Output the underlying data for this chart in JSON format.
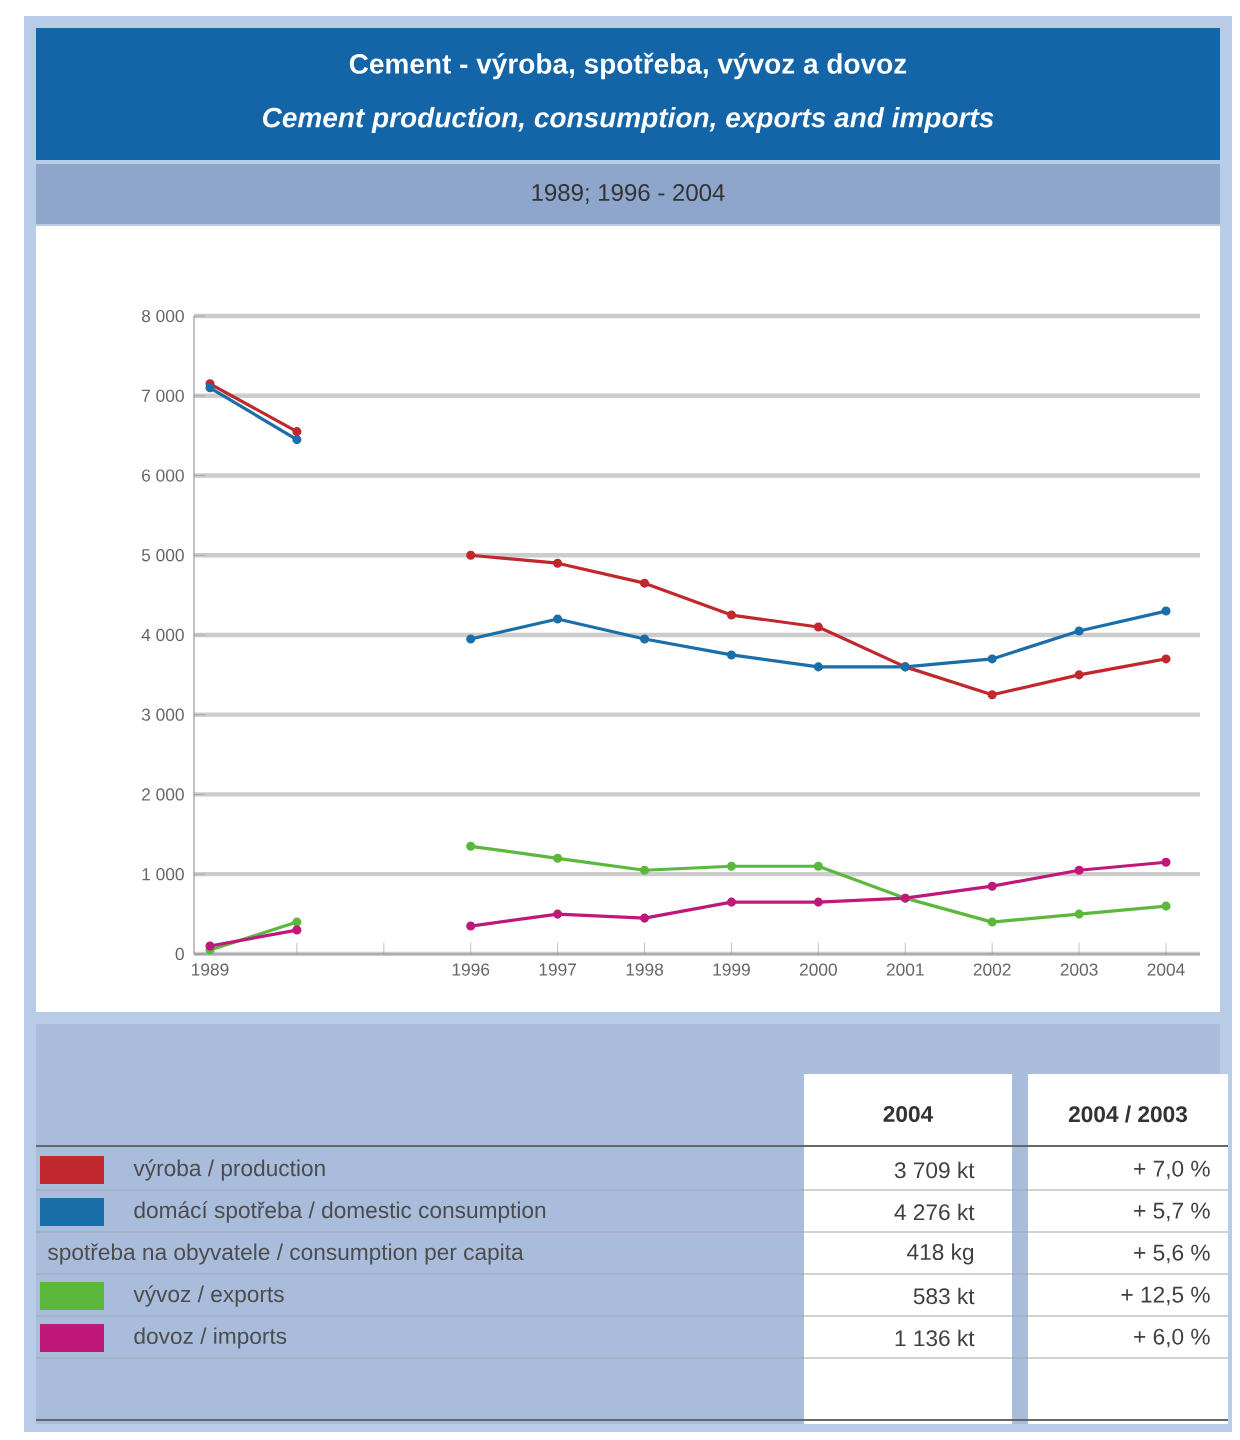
{
  "chart_data": {
    "type": "line",
    "title": "Cement - výroba, spotřeba, vývoz a dovoz",
    "subtitle": "*Cement production, consumption, exports and imports*",
    "categories": [
      "1989",
      null,
      null,
      "1996",
      "1997",
      "1998",
      "1999",
      "2000",
      "2001",
      "2002",
      "2003",
      "2004"
    ],
    "series": [
      {
        "name": "výroba / production",
        "color": "#c0282e",
        "values": [
          7150,
          6550,
          null,
          5000,
          4900,
          4650,
          4250,
          4100,
          3600,
          3250,
          3500,
          3700
        ]
      },
      {
        "name": "domácí spotřeba / domestic consumption",
        "color": "#1a6fa8",
        "values": [
          7100,
          6450,
          null,
          3950,
          4200,
          3950,
          3750,
          3600,
          3600,
          3700,
          4050,
          4300
        ]
      },
      {
        "name": "vývoz / exports",
        "color": "#5cb83c",
        "values": [
          50,
          400,
          null,
          1350,
          1200,
          1050,
          1100,
          1100,
          700,
          400,
          500,
          600
        ]
      },
      {
        "name": "dovoz / imports",
        "color": "#c0187a",
        "values": [
          100,
          300,
          null,
          350,
          500,
          450,
          650,
          650,
          700,
          850,
          1050,
          1150
        ]
      }
    ],
    "ylim": [
      0,
      8000
    ],
    "yticks": [
      0,
      {
        "value": 1000,
        "label": "1 000"
      },
      {
        "value": 2000,
        "label": "2 000"
      },
      {
        "value": 3000,
        "label": "3 000"
      },
      {
        "value": 4000,
        "label": "4 000"
      },
      {
        "value": 5000,
        "label": "5 000"
      },
      {
        "value": 6000,
        "label": "6 000"
      },
      {
        "value": 7000,
        "label": "7 000"
      },
      {
        "value": 8000,
        "label": "8 000"
      }
    ],
    "grid": "y",
    "marker": "circle",
    "line_style": "solid",
    "legend": "bottom",
    "annotations": [
      "1989; 1996 - 2004",
      "2004",
      "2004 / 2003",
      "3 709 kt",
      "+ 7,0 %",
      "4 276 kt",
      "+ 5,7 %",
      "spotřeba na obyvatele / consumption per capita",
      "418 kg",
      "+ 5,6 %",
      "583 kt",
      "+ 12,5 %",
      "1 136 kt",
      "+ 6,0 %"
    ]
  }
}
